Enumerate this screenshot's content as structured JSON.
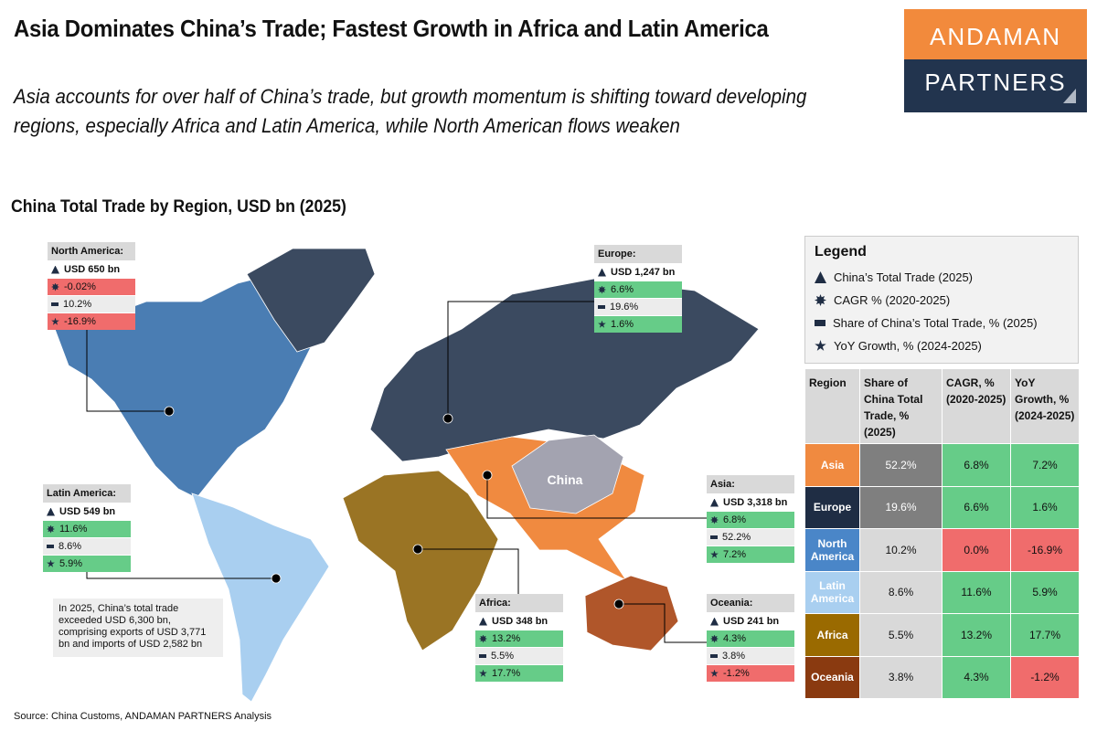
{
  "header": {
    "title": "Asia Dominates China’s Trade; Fastest Growth in Africa and Latin America",
    "subtitle": "Asia accounts for over half of China’s trade, but growth momentum is shifting toward developing regions, especially Africa and Latin America, while North American flows weaken"
  },
  "logo": {
    "line1": "ANDAMAN",
    "line2": "PARTNERS"
  },
  "map": {
    "title": "China Total Trade by Region, USD bn (2025)",
    "china_label": "China",
    "note": "In 2025, China’s total trade exceeded USD 6,300 bn, comprising exports of USD 3,771 bn and imports of USD 2,582 bn",
    "callouts": [
      {
        "region": "North America:",
        "trade": "USD 650 bn",
        "cagr": "-0.02%",
        "share": "10.2%",
        "yoy": "-16.9%"
      },
      {
        "region": "Europe:",
        "trade": "USD 1,247 bn",
        "cagr": "6.6%",
        "share": "19.6%",
        "yoy": "1.6%"
      },
      {
        "region": "Latin America:",
        "trade": "USD 549 bn",
        "cagr": "11.6%",
        "share": "8.6%",
        "yoy": "5.9%"
      },
      {
        "region": "Asia:",
        "trade": "USD 3,318 bn",
        "cagr": "6.8%",
        "share": "52.2%",
        "yoy": "7.2%"
      },
      {
        "region": "Africa:",
        "trade": "USD 348 bn",
        "cagr": "13.2%",
        "share": "5.5%",
        "yoy": "17.7%"
      },
      {
        "region": "Oceania:",
        "trade": "USD 241 bn",
        "cagr": "4.3%",
        "share": "3.8%",
        "yoy": "-1.2%"
      }
    ]
  },
  "legend": {
    "title": "Legend",
    "items": [
      "China’s Total Trade (2025)",
      "CAGR % (2020-2025)",
      "Share of China’s Total Trade, % (2025)",
      "YoY Growth, % (2024-2025)"
    ]
  },
  "table": {
    "headers": [
      "Region",
      "Share of China Total Trade, % (2025)",
      "CAGR, % (2020-2025)",
      "YoY Growth, % (2024-2025)"
    ],
    "rows": [
      [
        "Asia",
        "52.2%",
        "6.8%",
        "7.2%"
      ],
      [
        "Europe",
        "19.6%",
        "6.6%",
        "1.6%"
      ],
      [
        "North America",
        "10.2%",
        "0.0%",
        "-16.9%"
      ],
      [
        "Latin America",
        "8.6%",
        "11.6%",
        "5.9%"
      ],
      [
        "Africa",
        "5.5%",
        "13.2%",
        "17.7%"
      ],
      [
        "Oceania",
        "3.8%",
        "4.3%",
        "-1.2%"
      ]
    ]
  },
  "source": "Source: China Customs, ANDAMAN PARTNERS Analysis"
}
